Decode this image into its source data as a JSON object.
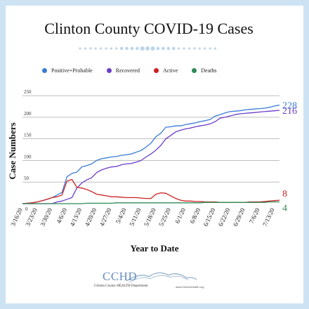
{
  "chart_data": {
    "type": "line",
    "title": "Clinton County COVID-19 Cases",
    "xlabel": "Year to Date",
    "ylabel": "Case Numbers",
    "ylim": [
      0,
      260
    ],
    "yticks": [
      0,
      50,
      100,
      150,
      200,
      250
    ],
    "grid": true,
    "legend": "top",
    "x": [
      "3/16/20",
      "3/18/20",
      "3/20/20",
      "3/23/20",
      "3/25/20",
      "3/27/20",
      "3/30/20",
      "4/1/20",
      "4/3/20",
      "4/6/20",
      "4/8/20",
      "4/10/20",
      "4/13/20",
      "4/15/20",
      "4/17/20",
      "4/20/20",
      "4/22/20",
      "4/24/20",
      "4/27/20",
      "4/29/20",
      "5/1/20",
      "5/4/20",
      "5/6/20",
      "5/8/20",
      "5/11/20",
      "5/13/20",
      "5/15/20",
      "5/18/20",
      "5/20/20",
      "5/22/20",
      "5/25/20",
      "5/27/20",
      "5/29/20",
      "6/1/20",
      "6/3/20",
      "6/5/20",
      "6/8/20",
      "6/10/20",
      "6/12/20",
      "6/15/20",
      "6/17/20",
      "6/19/20",
      "6/22/20",
      "6/24/20",
      "6/26/20",
      "6/29/20",
      "7/1/20",
      "7/3/20",
      "7/6/20",
      "7/8/20",
      "7/10/20",
      "7/13/20",
      "7/15/20"
    ],
    "xtick_labels": [
      "3/16/20",
      "3/23/20",
      "3/30/20",
      "4/6/20",
      "4/13/20",
      "4/20/20",
      "4/27/20",
      "5/4/20",
      "5/11/20",
      "5/18/20",
      "5/25/20",
      "6/1/20",
      "6/8/20",
      "6/15/20",
      "6/22/20",
      "6/29/20",
      "7/6/20",
      "7/13/20"
    ],
    "series": [
      {
        "name": "Positive+Probable",
        "color": "#3a7bd5",
        "values": [
          0,
          1,
          2,
          4,
          7,
          10,
          14,
          20,
          26,
          62,
          70,
          73,
          85,
          88,
          92,
          100,
          104,
          106,
          108,
          109,
          112,
          113,
          115,
          119,
          123,
          131,
          140,
          155,
          163,
          177,
          178,
          180,
          180,
          183,
          185,
          187,
          190,
          192,
          195,
          203,
          206,
          210,
          213,
          214,
          215,
          217,
          218,
          219,
          220,
          221,
          223,
          226,
          228
        ],
        "end_label": "228"
      },
      {
        "name": "Recovered",
        "color": "#6a3dc8",
        "values": [
          0,
          0,
          0,
          0,
          0,
          0,
          0,
          4,
          6,
          10,
          14,
          36,
          48,
          55,
          60,
          72,
          78,
          82,
          85,
          86,
          90,
          92,
          93,
          96,
          100,
          108,
          115,
          124,
          135,
          150,
          158,
          166,
          170,
          173,
          175,
          178,
          180,
          182,
          185,
          190,
          198,
          200,
          203,
          206,
          208,
          209,
          210,
          211,
          212,
          213,
          214,
          215,
          216
        ],
        "end_label": "216"
      },
      {
        "name": "Active",
        "color": "#cc2222",
        "values": [
          0,
          1,
          2,
          4,
          7,
          10,
          14,
          16,
          20,
          52,
          56,
          38,
          36,
          33,
          28,
          22,
          20,
          18,
          16,
          16,
          15,
          14,
          14,
          14,
          13,
          12,
          12,
          22,
          25,
          24,
          18,
          12,
          8,
          6,
          6,
          5,
          5,
          4,
          4,
          4,
          3,
          3,
          3,
          3,
          3,
          3,
          4,
          4,
          4,
          5,
          6,
          7,
          8
        ],
        "end_label": "8"
      },
      {
        "name": "Deaths",
        "color": "#2e8b57",
        "values": [
          0,
          0,
          0,
          0,
          0,
          0,
          0,
          0,
          0,
          0,
          0,
          0,
          0,
          1,
          1,
          1,
          1,
          1,
          1,
          2,
          2,
          2,
          2,
          2,
          2,
          2,
          2,
          2,
          2,
          2,
          2,
          2,
          2,
          2,
          2,
          2,
          2,
          3,
          3,
          3,
          3,
          3,
          3,
          3,
          3,
          3,
          3,
          3,
          3,
          3,
          4,
          4,
          4
        ],
        "end_label": "4"
      }
    ]
  },
  "footer": {
    "logo_text": "CCHD",
    "logo_subtext": "Clinton County HEALTH Department",
    "logo_url": "www.ClintonHealth.org"
  }
}
